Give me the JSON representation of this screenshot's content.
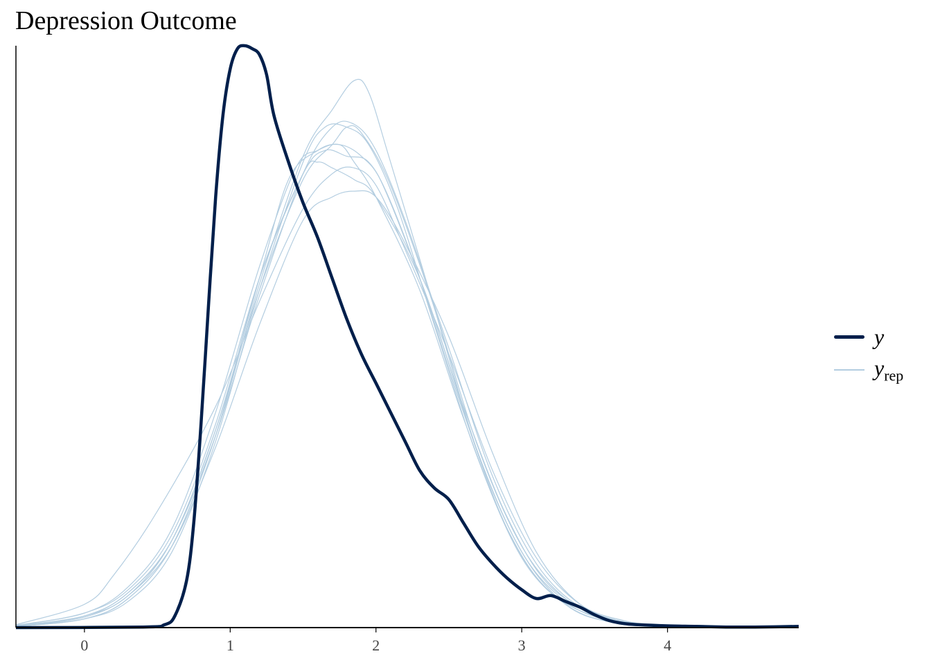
{
  "chart_data": {
    "type": "line",
    "title": "Depression Outcome",
    "xlabel": "",
    "ylabel": "",
    "xlim": [
      -0.47,
      4.9
    ],
    "ylim": [
      0,
      1.0
    ],
    "xticks": [
      "0",
      "1",
      "2",
      "3",
      "4"
    ],
    "legend_position": "right",
    "grid": false,
    "colors": {
      "y": "#011f4b",
      "yrep": "#b3cde0"
    },
    "legend": {
      "y_label": "y",
      "yrep_label": "y",
      "yrep_sub": "rep"
    },
    "series": [
      {
        "name": "y",
        "x": [
          -0.47,
          0.4,
          0.55,
          0.62,
          0.7,
          0.75,
          0.8,
          0.85,
          0.9,
          0.95,
          1.0,
          1.05,
          1.1,
          1.15,
          1.2,
          1.25,
          1.3,
          1.4,
          1.5,
          1.6,
          1.7,
          1.8,
          1.9,
          2.0,
          2.1,
          2.2,
          2.3,
          2.4,
          2.5,
          2.6,
          2.7,
          2.8,
          2.9,
          3.0,
          3.1,
          3.2,
          3.3,
          3.4,
          3.5,
          3.6,
          3.7,
          3.8,
          4.0,
          4.2,
          4.4,
          4.6,
          4.9
        ],
        "values": [
          0,
          0.001,
          0.005,
          0.02,
          0.08,
          0.18,
          0.35,
          0.55,
          0.74,
          0.88,
          0.96,
          0.995,
          1.0,
          0.995,
          0.985,
          0.95,
          0.88,
          0.8,
          0.73,
          0.67,
          0.6,
          0.53,
          0.47,
          0.42,
          0.37,
          0.32,
          0.27,
          0.24,
          0.22,
          0.18,
          0.14,
          0.11,
          0.085,
          0.065,
          0.05,
          0.055,
          0.045,
          0.035,
          0.022,
          0.012,
          0.007,
          0.005,
          0.003,
          0.002,
          0.001,
          0.001,
          0.002
        ]
      },
      {
        "name": "y_rep_1",
        "x": [
          -0.47,
          0,
          0.3,
          0.6,
          0.9,
          1.2,
          1.5,
          1.7,
          1.8,
          1.9,
          2.1,
          2.4,
          2.7,
          3.0,
          3.3,
          3.6,
          4.0,
          4.4,
          4.9
        ],
        "values": [
          0.003,
          0.02,
          0.06,
          0.15,
          0.34,
          0.58,
          0.77,
          0.83,
          0.86,
          0.85,
          0.76,
          0.55,
          0.31,
          0.14,
          0.05,
          0.015,
          0.003,
          0.001,
          0
        ]
      },
      {
        "name": "y_rep_2",
        "x": [
          -0.47,
          0,
          0.3,
          0.6,
          0.9,
          1.2,
          1.5,
          1.65,
          1.8,
          1.95,
          2.1,
          2.4,
          2.7,
          3.0,
          3.3,
          3.6,
          4.0,
          4.4,
          4.9
        ],
        "values": [
          0.002,
          0.015,
          0.05,
          0.14,
          0.33,
          0.6,
          0.78,
          0.82,
          0.81,
          0.8,
          0.73,
          0.53,
          0.3,
          0.13,
          0.045,
          0.012,
          0.002,
          0.001,
          0
        ]
      },
      {
        "name": "y_rep_3",
        "x": [
          -0.47,
          0,
          0.3,
          0.6,
          0.9,
          1.2,
          1.45,
          1.6,
          1.75,
          1.85,
          2.0,
          2.3,
          2.6,
          2.9,
          3.2,
          3.6,
          4.0,
          4.4,
          4.9
        ],
        "values": [
          0.004,
          0.025,
          0.07,
          0.17,
          0.37,
          0.62,
          0.79,
          0.82,
          0.83,
          0.8,
          0.74,
          0.58,
          0.36,
          0.17,
          0.06,
          0.012,
          0.002,
          0.001,
          0
        ]
      },
      {
        "name": "y_rep_4",
        "x": [
          -0.47,
          0,
          0.2,
          0.5,
          0.9,
          1.2,
          1.5,
          1.7,
          1.85,
          2.0,
          2.2,
          2.5,
          2.8,
          3.1,
          3.4,
          3.7,
          4.0,
          4.4,
          4.9
        ],
        "values": [
          0.005,
          0.04,
          0.09,
          0.2,
          0.38,
          0.56,
          0.72,
          0.78,
          0.79,
          0.76,
          0.65,
          0.47,
          0.27,
          0.12,
          0.04,
          0.012,
          0.003,
          0.001,
          0
        ]
      },
      {
        "name": "y_rep_5",
        "x": [
          -0.47,
          0,
          0.3,
          0.6,
          0.9,
          1.2,
          1.5,
          1.65,
          1.8,
          1.95,
          2.15,
          2.4,
          2.7,
          3.0,
          3.3,
          3.6,
          4.0,
          4.4,
          4.9
        ],
        "values": [
          0.002,
          0.015,
          0.045,
          0.13,
          0.32,
          0.58,
          0.8,
          0.86,
          0.86,
          0.83,
          0.72,
          0.52,
          0.29,
          0.12,
          0.04,
          0.01,
          0.002,
          0.001,
          0
        ]
      },
      {
        "name": "y_rep_6",
        "x": [
          -0.47,
          0,
          0.3,
          0.6,
          0.9,
          1.2,
          1.5,
          1.7,
          1.85,
          2.0,
          2.2,
          2.5,
          2.8,
          3.1,
          3.4,
          3.7,
          4.0,
          4.4,
          4.9
        ],
        "values": [
          0.002,
          0.02,
          0.06,
          0.15,
          0.33,
          0.57,
          0.78,
          0.86,
          0.865,
          0.82,
          0.7,
          0.48,
          0.26,
          0.11,
          0.035,
          0.01,
          0.002,
          0.001,
          0
        ]
      },
      {
        "name": "y_rep_7",
        "x": [
          -0.47,
          0,
          0.3,
          0.6,
          0.9,
          1.2,
          1.5,
          1.7,
          1.85,
          1.95,
          2.1,
          2.4,
          2.7,
          3.0,
          3.3,
          3.6,
          4.0,
          4.4,
          4.9
        ],
        "values": [
          0.002,
          0.015,
          0.05,
          0.14,
          0.33,
          0.59,
          0.81,
          0.89,
          0.94,
          0.92,
          0.8,
          0.55,
          0.3,
          0.13,
          0.04,
          0.01,
          0.002,
          0.001,
          0
        ]
      },
      {
        "name": "y_rep_8",
        "x": [
          -0.47,
          0,
          0.3,
          0.6,
          0.9,
          1.2,
          1.4,
          1.6,
          1.75,
          1.9,
          2.05,
          2.3,
          2.6,
          2.9,
          3.2,
          3.6,
          4.0,
          4.4,
          4.9
        ],
        "values": [
          0.003,
          0.02,
          0.055,
          0.15,
          0.34,
          0.6,
          0.77,
          0.82,
          0.83,
          0.81,
          0.76,
          0.6,
          0.37,
          0.17,
          0.06,
          0.012,
          0.002,
          0.001,
          0
        ]
      },
      {
        "name": "y_rep_9",
        "x": [
          -0.47,
          0,
          0.3,
          0.6,
          0.9,
          1.2,
          1.5,
          1.6,
          1.7,
          1.85,
          2.0,
          2.3,
          2.6,
          2.9,
          3.2,
          3.6,
          4.0,
          4.4,
          4.9
        ],
        "values": [
          0.003,
          0.025,
          0.065,
          0.16,
          0.35,
          0.6,
          0.78,
          0.8,
          0.79,
          0.77,
          0.74,
          0.6,
          0.38,
          0.19,
          0.07,
          0.015,
          0.003,
          0.001,
          0
        ]
      },
      {
        "name": "y_rep_10",
        "x": [
          -0.47,
          0,
          0.3,
          0.6,
          0.9,
          1.2,
          1.5,
          1.7,
          1.85,
          2.0,
          2.2,
          2.5,
          2.8,
          3.1,
          3.4,
          3.7,
          4.0,
          4.4,
          4.9
        ],
        "values": [
          0.002,
          0.018,
          0.055,
          0.14,
          0.31,
          0.52,
          0.7,
          0.74,
          0.75,
          0.74,
          0.66,
          0.5,
          0.3,
          0.13,
          0.04,
          0.01,
          0.002,
          0.001,
          0
        ]
      }
    ]
  }
}
